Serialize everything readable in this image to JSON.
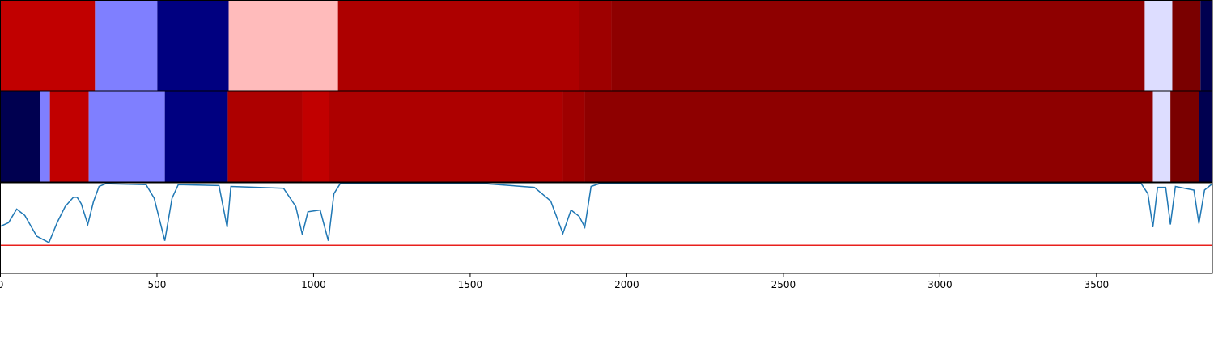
{
  "chart_data": [
    {
      "type": "strip",
      "xlim": [
        0,
        3870
      ],
      "bins": [
        0,
        302,
        501,
        729,
        1078,
        1848,
        1951,
        3654,
        3742,
        3832,
        3870
      ],
      "colors": [
        "#c10000",
        "#7f7fff",
        "#000080",
        "#ffbbbb",
        "#ad0000",
        "#9e0000",
        "#8e0000",
        "#ddddff",
        "#7a0000",
        "#000050"
      ]
    },
    {
      "type": "strip",
      "xlim": [
        0,
        3870
      ],
      "bins": [
        0,
        127,
        158,
        282,
        525,
        726,
        964,
        1049,
        1796,
        1866,
        3680,
        3736,
        3827,
        3870
      ],
      "colors": [
        "#000050",
        "#7f7fff",
        "#c10000",
        "#7f7fff",
        "#000080",
        "#ad0000",
        "#c10000",
        "#ad0000",
        "#9e0000",
        "#8e0000",
        "#ddddff",
        "#7a0000",
        "#000050"
      ]
    },
    {
      "type": "line",
      "xlim": [
        0,
        3870
      ],
      "ylim": [
        0,
        1
      ],
      "color": "#1f77b4",
      "hline": 0.31,
      "hline_color": "#e8201c",
      "xticks": [
        0,
        500,
        1000,
        1500,
        2000,
        2500,
        3000,
        3500
      ],
      "x": [
        0,
        26,
        52,
        78,
        116,
        155,
        181,
        207,
        233,
        245,
        258,
        279,
        297,
        315,
        336,
        465,
        491,
        525,
        548,
        568,
        698,
        724,
        736,
        904,
        943,
        964,
        982,
        1021,
        1047,
        1065,
        1085,
        1550,
        1705,
        1757,
        1796,
        1822,
        1848,
        1866,
        1886,
        1912,
        3643,
        3664,
        3680,
        3695,
        3721,
        3736,
        3752,
        3811,
        3827,
        3845,
        3870
      ],
      "values": [
        0.52,
        0.56,
        0.71,
        0.64,
        0.41,
        0.34,
        0.56,
        0.74,
        0.84,
        0.84,
        0.77,
        0.54,
        0.79,
        0.96,
        0.99,
        0.98,
        0.83,
        0.36,
        0.83,
        0.98,
        0.97,
        0.51,
        0.96,
        0.94,
        0.74,
        0.43,
        0.68,
        0.7,
        0.36,
        0.88,
        0.99,
        0.99,
        0.95,
        0.8,
        0.44,
        0.7,
        0.63,
        0.51,
        0.96,
        0.99,
        0.99,
        0.88,
        0.51,
        0.95,
        0.95,
        0.54,
        0.96,
        0.92,
        0.55,
        0.92,
        0.99
      ]
    }
  ]
}
